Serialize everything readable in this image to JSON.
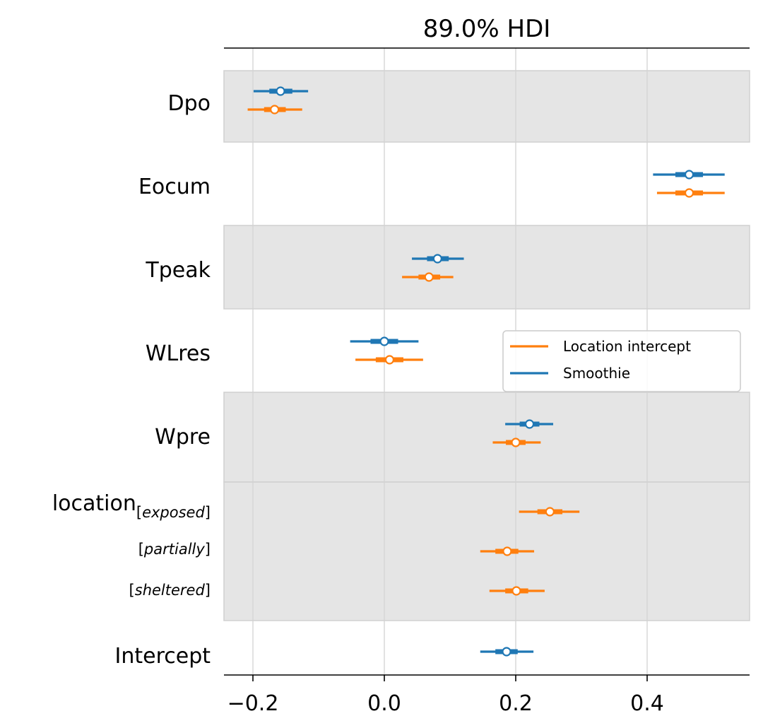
{
  "chart_data": {
    "type": "forest",
    "title": "89.0% HDI",
    "xlim": [
      -0.24,
      0.55
    ],
    "xticks": [
      -0.2,
      0.0,
      0.2,
      0.4
    ],
    "xtick_labels": [
      "−0.2",
      "0.0",
      "0.2",
      "0.4"
    ],
    "grid": true,
    "legend_placement": "right-middle",
    "series": [
      {
        "name": "Location intercept",
        "color": "#ff7f0e"
      },
      {
        "name": "Smoothie",
        "color": "#1f77b4"
      }
    ],
    "groups": [
      {
        "label": "Dpo",
        "shaded": true,
        "rows": [
          {
            "sub": "",
            "points": [
              {
                "series": "Smoothie",
                "median": -0.158,
                "hdi": [
                  -0.199,
                  -0.116
                ],
                "iqr": [
                  -0.175,
                  -0.14
                ]
              },
              {
                "series": "Location intercept",
                "median": -0.167,
                "hdi": [
                  -0.208,
                  -0.125
                ],
                "iqr": [
                  -0.183,
                  -0.15
                ]
              }
            ]
          }
        ]
      },
      {
        "label": "Eocum",
        "shaded": false,
        "rows": [
          {
            "sub": "",
            "points": [
              {
                "series": "Smoothie",
                "median": 0.464,
                "hdi": [
                  0.409,
                  0.518
                ],
                "iqr": [
                  0.443,
                  0.485
                ]
              },
              {
                "series": "Location intercept",
                "median": 0.464,
                "hdi": [
                  0.415,
                  0.518
                ],
                "iqr": [
                  0.443,
                  0.485
                ]
              }
            ]
          }
        ]
      },
      {
        "label": "Tpeak",
        "shaded": true,
        "rows": [
          {
            "sub": "",
            "points": [
              {
                "series": "Smoothie",
                "median": 0.081,
                "hdi": [
                  0.042,
                  0.121
                ],
                "iqr": [
                  0.065,
                  0.098
                ]
              },
              {
                "series": "Location intercept",
                "median": 0.068,
                "hdi": [
                  0.027,
                  0.105
                ],
                "iqr": [
                  0.052,
                  0.085
                ]
              }
            ]
          }
        ]
      },
      {
        "label": "WLres",
        "shaded": false,
        "rows": [
          {
            "sub": "",
            "points": [
              {
                "series": "Smoothie",
                "median": 0.0,
                "hdi": [
                  -0.052,
                  0.052
                ],
                "iqr": [
                  -0.021,
                  0.021
                ]
              },
              {
                "series": "Location intercept",
                "median": 0.008,
                "hdi": [
                  -0.044,
                  0.059
                ],
                "iqr": [
                  -0.013,
                  0.029
                ]
              }
            ]
          }
        ]
      },
      {
        "label": "Wpre",
        "shaded": true,
        "rows": [
          {
            "sub": "",
            "points": [
              {
                "series": "Smoothie",
                "median": 0.221,
                "hdi": [
                  0.184,
                  0.257
                ],
                "iqr": [
                  0.206,
                  0.236
                ]
              },
              {
                "series": "Location intercept",
                "median": 0.2,
                "hdi": [
                  0.165,
                  0.238
                ],
                "iqr": [
                  0.185,
                  0.215
                ]
              }
            ]
          }
        ]
      },
      {
        "label": "location",
        "shaded": true,
        "rows": [
          {
            "sub": "exposed",
            "points": [
              {
                "series": "Location intercept",
                "median": 0.252,
                "hdi": [
                  0.205,
                  0.297
                ],
                "iqr": [
                  0.233,
                  0.271
                ]
              }
            ]
          },
          {
            "sub": "partially",
            "points": [
              {
                "series": "Location intercept",
                "median": 0.187,
                "hdi": [
                  0.146,
                  0.228
                ],
                "iqr": [
                  0.169,
                  0.204
                ]
              }
            ]
          },
          {
            "sub": "sheltered",
            "points": [
              {
                "series": "Location intercept",
                "median": 0.201,
                "hdi": [
                  0.16,
                  0.244
                ],
                "iqr": [
                  0.184,
                  0.219
                ]
              }
            ]
          }
        ]
      },
      {
        "label": "Intercept",
        "shaded": false,
        "rows": [
          {
            "sub": "",
            "points": [
              {
                "series": "Smoothie",
                "median": 0.186,
                "hdi": [
                  0.146,
                  0.227
                ],
                "iqr": [
                  0.169,
                  0.203
                ]
              }
            ]
          }
        ]
      }
    ]
  }
}
